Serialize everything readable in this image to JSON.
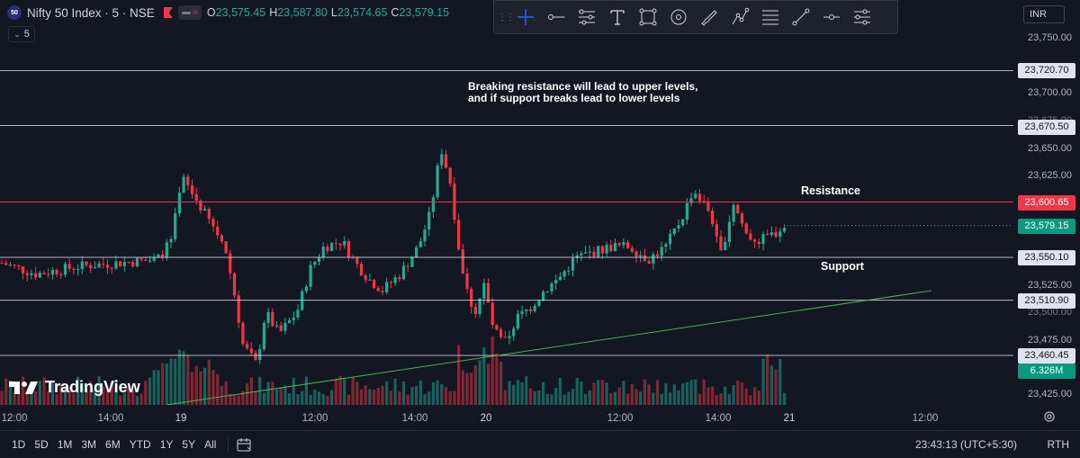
{
  "header": {
    "symbol_logo": "50",
    "symbol_title": "Nifty 50 Index · 5 · NSE",
    "ohlc": [
      {
        "k": "O",
        "v": "23,575.45"
      },
      {
        "k": "H",
        "v": "23,587.80"
      },
      {
        "k": "L",
        "v": "23,574.65"
      },
      {
        "k": "C",
        "v": "23,579.15"
      }
    ],
    "interval_value": "5"
  },
  "toolbar": {
    "tools": [
      "crosshair-icon",
      "horizontal-ray-icon",
      "parallel-channel-icon",
      "text-icon",
      "rectangle-icon",
      "target-icon",
      "brush-icon",
      "pattern-icon",
      "fib-icon",
      "trend-line-icon",
      "horizontal-line-icon",
      "range-icon"
    ]
  },
  "price_axis": {
    "currency": "INR",
    "ticks": [
      "23,750.00",
      "23,700.00",
      "23,675.00",
      "23,650.00",
      "23,625.00",
      "23,575.00",
      "23,525.00",
      "23,500.00",
      "23,475.00",
      "23,425.00"
    ],
    "labels": [
      {
        "text": "23,720.70",
        "style": "white"
      },
      {
        "text": "23,670.50",
        "style": "white"
      },
      {
        "text": "23,600.65",
        "style": "red"
      },
      {
        "text": "23,579.15",
        "style": "green"
      },
      {
        "text": "23,550.10",
        "style": "white"
      },
      {
        "text": "23,510.90",
        "style": "white"
      },
      {
        "text": "23,460.45",
        "style": "white"
      },
      {
        "text": "6.326M",
        "style": "vol"
      }
    ]
  },
  "time_axis": {
    "ticks": [
      {
        "text": "12:00",
        "bold": false
      },
      {
        "text": "14:00",
        "bold": false
      },
      {
        "text": "19",
        "bold": true
      },
      {
        "text": "12:00",
        "bold": false
      },
      {
        "text": "14:00",
        "bold": false
      },
      {
        "text": "20",
        "bold": true
      },
      {
        "text": "12:00",
        "bold": false
      },
      {
        "text": "14:00",
        "bold": false
      },
      {
        "text": "21",
        "bold": true
      },
      {
        "text": "12:00",
        "bold": false
      }
    ]
  },
  "annotations": {
    "note_line1": "Breaking resistance will lead to upper levels,",
    "note_line2": "and if support breaks lead to lower levels",
    "resistance": "Resistance",
    "support": "Support"
  },
  "branding": {
    "name": "TradingView"
  },
  "bottom_bar": {
    "ranges": [
      "1D",
      "5D",
      "1M",
      "3M",
      "6M",
      "YTD",
      "1Y",
      "5Y",
      "All"
    ],
    "clock": "23:43:13 (UTC+5:30)",
    "session": "RTH"
  },
  "colors": {
    "background": "#131722",
    "up": "#22ab94",
    "down": "#f23645",
    "resistance_line": "#f23645",
    "level_line": "#d1d4dc",
    "trend_line": "#4caf50"
  },
  "chart_data": {
    "type": "candlestick",
    "symbol": "Nifty 50 Index",
    "interval": "5",
    "last_close": 23579.15,
    "last_volume": "6.326M",
    "horizontal_levels": [
      23720.7,
      23670.5,
      23600.65,
      23550.1,
      23510.9,
      23460.45
    ],
    "trend_line": {
      "from": {
        "x": "19 ~10:30",
        "y": 23420
      },
      "to": {
        "x": "21 ~11:30",
        "y": 23518
      }
    },
    "ylim": [
      23410,
      23760
    ]
  }
}
